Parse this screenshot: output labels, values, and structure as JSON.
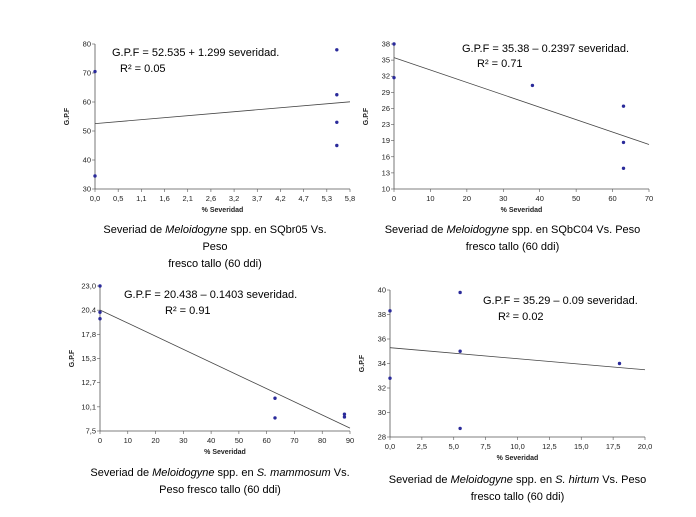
{
  "chart_data": [
    {
      "type": "scatter",
      "ylabel": "G.P.F",
      "xlabel": "% Severidad",
      "x_ticks": [
        "0,0",
        "0,5",
        "1,1",
        "1,6",
        "2,1",
        "2,6",
        "3,2",
        "3,7",
        "4,2",
        "4,7",
        "5,3",
        "5,8"
      ],
      "y_ticks": [
        "30",
        "40",
        "50",
        "60",
        "70",
        "80"
      ],
      "xlim": [
        0,
        5.8
      ],
      "ylim": [
        30,
        80
      ],
      "points": [
        {
          "x": 0.0,
          "y": 34.5
        },
        {
          "x": 0.0,
          "y": 70.5
        },
        {
          "x": 5.5,
          "y": 78
        },
        {
          "x": 5.5,
          "y": 62.5
        },
        {
          "x": 5.5,
          "y": 53
        },
        {
          "x": 5.5,
          "y": 45
        }
      ],
      "trend": {
        "intercept": 52.535,
        "slope": 1.299
      },
      "equation": "G.P.F =  52.535 + 1.299 severidad.",
      "r2": "R² = 0.05",
      "caption": {
        "pre": "Severiad de ",
        "italic": "Meloidogyne",
        "post": " spp. en  SQbr05  Vs. Peso",
        "line2": "fresco tallo (60 ddi)"
      }
    },
    {
      "type": "scatter",
      "ylabel": "G.P.F",
      "xlabel": "% Severidad",
      "x_ticks": [
        "0",
        "10",
        "20",
        "30",
        "40",
        "50",
        "60",
        "70"
      ],
      "y_ticks": [
        "10",
        "13",
        "16",
        "19",
        "23",
        "26",
        "29",
        "32",
        "35",
        "38"
      ],
      "xlim": [
        0,
        70
      ],
      "ylim": [
        10,
        38
      ],
      "points": [
        {
          "x": 0,
          "y": 38
        },
        {
          "x": 0,
          "y": 31.5
        },
        {
          "x": 38,
          "y": 30
        },
        {
          "x": 63,
          "y": 26
        },
        {
          "x": 63,
          "y": 19
        },
        {
          "x": 63,
          "y": 14
        }
      ],
      "trend": {
        "intercept": 35.38,
        "slope": -0.2397
      },
      "equation": "G.P.F =  35.38 – 0.2397 severidad.",
      "r2": "R² = 0.71",
      "caption": {
        "pre": "Severiad de ",
        "italic": "Meloidogyne",
        "post": " spp. en  SQbC04  Vs. Peso",
        "line2": "fresco tallo (60 ddi)"
      }
    },
    {
      "type": "scatter",
      "ylabel": "G.P.F",
      "xlabel": "% Severidad",
      "x_ticks": [
        "0",
        "10",
        "20",
        "30",
        "40",
        "50",
        "60",
        "70",
        "80",
        "90"
      ],
      "y_ticks": [
        "7,5",
        "10,1",
        "12,7",
        "15,3",
        "17,8",
        "20,4",
        "23,0"
      ],
      "xlim": [
        0,
        90
      ],
      "ylim": [
        7.5,
        23.0
      ],
      "points": [
        {
          "x": 0,
          "y": 23.0
        },
        {
          "x": 0,
          "y": 20.2
        },
        {
          "x": 0,
          "y": 19.5
        },
        {
          "x": 63,
          "y": 11.0
        },
        {
          "x": 63,
          "y": 8.9
        },
        {
          "x": 88,
          "y": 9.3
        },
        {
          "x": 88,
          "y": 9.0
        }
      ],
      "trend": {
        "intercept": 20.438,
        "slope": -0.1403
      },
      "equation": "G.P.F = 20.438 – 0.1403 severidad.",
      "r2": "R² = 0.91",
      "caption": {
        "pre": "Severiad de ",
        "italic": "Meloidogyne",
        "post": " spp. en ",
        "italic2": "S. mammosum",
        "post2": "  Vs.",
        "line2": "Peso fresco tallo (60 ddi)"
      }
    },
    {
      "type": "scatter",
      "ylabel": "G.P.F",
      "xlabel": "% Severidad",
      "x_ticks": [
        "0,0",
        "2,5",
        "5,0",
        "7,5",
        "10,0",
        "12,5",
        "15,0",
        "17,5",
        "20,0"
      ],
      "y_ticks": [
        "28",
        "30",
        "32",
        "34",
        "36",
        "38",
        "40"
      ],
      "xlim": [
        0,
        20
      ],
      "ylim": [
        28,
        40
      ],
      "points": [
        {
          "x": 0,
          "y": 38.3
        },
        {
          "x": 0,
          "y": 32.8
        },
        {
          "x": 5.5,
          "y": 39.8
        },
        {
          "x": 5.5,
          "y": 35
        },
        {
          "x": 5.5,
          "y": 28.7
        },
        {
          "x": 18,
          "y": 34
        }
      ],
      "trend": {
        "intercept": 35.29,
        "slope": -0.09
      },
      "equation": "G.P.F = 35.29 – 0.09 severidad.",
      "r2": "R² = 0.02",
      "caption": {
        "pre": "Severiad de ",
        "italic": "Meloidogyne",
        "post": " spp. en ",
        "italic2": "S. hirtum",
        "post2": "  Vs. Peso",
        "line2": "fresco tallo (60 ddi)"
      }
    }
  ],
  "colors": {
    "point": "#2a2a9a",
    "trend": "#444444",
    "axis": "#555555"
  }
}
